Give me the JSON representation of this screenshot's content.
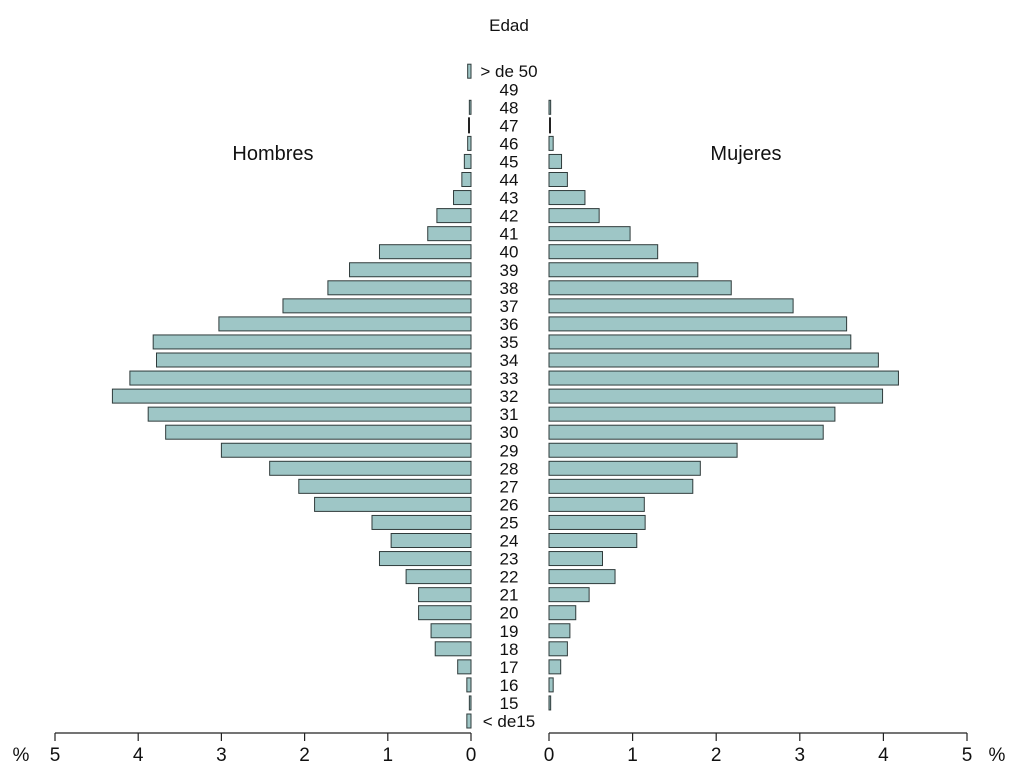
{
  "chart_data": {
    "type": "bar",
    "subtype": "population-pyramid",
    "title": "",
    "center_axis_title": "Edad",
    "bar_color": "#9ec6c6",
    "bar_edge_color": "#2f3b3b",
    "left_panel": {
      "label": "Hombres",
      "axis_unit": "%",
      "xlim": [
        0,
        5
      ],
      "ticks": [
        0,
        1,
        2,
        3,
        4,
        5
      ]
    },
    "right_panel": {
      "label": "Mujeres",
      "axis_unit": "%",
      "xlim": [
        0,
        5
      ],
      "ticks": [
        0,
        1,
        2,
        3,
        4,
        5
      ]
    },
    "grid": false,
    "categories": [
      "< de15",
      "15",
      "16",
      "17",
      "18",
      "19",
      "20",
      "21",
      "22",
      "23",
      "24",
      "25",
      "26",
      "27",
      "28",
      "29",
      "30",
      "31",
      "32",
      "33",
      "34",
      "35",
      "36",
      "37",
      "38",
      "39",
      "40",
      "41",
      "42",
      "43",
      "44",
      "45",
      "46",
      "47",
      "48",
      "49",
      "> de 50"
    ],
    "series": [
      {
        "name": "Hombres",
        "values": [
          0.05,
          0.02,
          0.05,
          0.16,
          0.43,
          0.48,
          0.63,
          0.63,
          0.78,
          1.1,
          0.96,
          1.19,
          1.88,
          2.07,
          2.42,
          3.0,
          3.67,
          3.88,
          4.31,
          4.1,
          3.78,
          3.82,
          3.03,
          2.26,
          1.72,
          1.46,
          1.1,
          0.52,
          0.41,
          0.21,
          0.11,
          0.08,
          0.04,
          0.0,
          0.02,
          0.0,
          0.04
        ]
      },
      {
        "name": "Mujeres",
        "values": [
          0.0,
          0.02,
          0.05,
          0.14,
          0.22,
          0.25,
          0.32,
          0.48,
          0.79,
          0.64,
          1.05,
          1.15,
          1.14,
          1.72,
          1.81,
          2.25,
          3.28,
          3.42,
          3.99,
          4.18,
          3.94,
          3.61,
          3.56,
          2.92,
          2.18,
          1.78,
          1.3,
          0.97,
          0.6,
          0.43,
          0.22,
          0.15,
          0.05,
          0.0,
          0.02,
          0.0,
          0.0
        ]
      }
    ]
  }
}
